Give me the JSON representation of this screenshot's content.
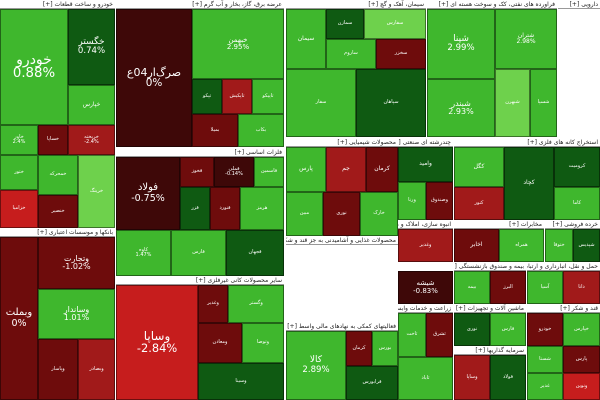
{
  "colors": {
    "strong_green": "#22a61c",
    "green": "#3fb72d",
    "light_green": "#6ed14c",
    "dark_green": "#0f5a12",
    "dark_red": "#6e0c0c",
    "red": "#a11a1a",
    "bright_red": "#c61d1d",
    "maroon": "#3e0808"
  },
  "headers": [
    {
      "id": "auto",
      "text": "خودرو و ساخت قطعات [+]"
    },
    {
      "id": "chem",
      "text": "عرضه برق، گاز، بخار و آب گرم [+]"
    },
    {
      "id": "cement",
      "text": "سیمان، آهک و گچ [+]"
    },
    {
      "id": "petro",
      "text": "فراورده های نفتی، کک و سوخت هسته ای [+]"
    },
    {
      "id": "pharma",
      "text": "دارویی [+]"
    },
    {
      "id": "metals",
      "text": "فلزات اساسی [+]"
    },
    {
      "id": "banks",
      "text": "بانکها و موسسات اعتباری [+]"
    },
    {
      "id": "chemprod",
      "text": "محصولات شیمیایی [+]"
    },
    {
      "id": "investing",
      "text": "چندرشته ای صنعتی [+]"
    },
    {
      "id": "mining",
      "text": "استخراج کانه های فلزی [+]"
    },
    {
      "id": "minerals",
      "text": "محصولات غذایی و آشامیدنی به جز قند و شکر [+]"
    },
    {
      "id": "rubber",
      "text": "انبوه سازی، املاک و مستغلات [+]"
    },
    {
      "id": "telecom",
      "text": "مخابرات [+]"
    },
    {
      "id": "trade",
      "text": "خرده فروشی [+]"
    },
    {
      "id": "nonmetal",
      "text": "سایر محصولات کانی غیرفلزی [+]"
    },
    {
      "id": "insurance",
      "text": "بیمه و صندوق بازنشستگی [+]"
    },
    {
      "id": "transport",
      "text": "حمل و نقل، انبارداری و ارتباطات [+]"
    },
    {
      "id": "machinery",
      "text": "ماشین آلات و تجهیزات [+]"
    },
    {
      "id": "sugar",
      "text": "قند و شکر [+]"
    },
    {
      "id": "tech",
      "text": "رایانه و فعالیتهای وابسته به آن [+]"
    },
    {
      "id": "agri",
      "text": "زراعت و خدمات وابسته [+]"
    },
    {
      "id": "finance",
      "text": "فعالیتهای کمکی به نهادهای مالی واسط [+]"
    },
    {
      "id": "misc",
      "text": "سرمایه گذاریها [+]"
    }
  ],
  "tiles": [
    {
      "id": "khodro",
      "name": "خودرو",
      "change": "0.88%",
      "color": "green",
      "fs": 14
    },
    {
      "id": "khgostar",
      "name": "خگستر",
      "change": "0.74%",
      "color": "dark_green",
      "fs": 9
    },
    {
      "id": "khpars",
      "name": "خپارس",
      "change": "",
      "color": "green",
      "fs": 6
    },
    {
      "id": "kham",
      "name": "خاور",
      "change": "2.4%",
      "color": "green",
      "fs": 5
    },
    {
      "id": "khras",
      "name": "خریخته",
      "change": "-2.4%",
      "color": "red",
      "fs": 5
    },
    {
      "id": "khs1",
      "name": "خساپا",
      "change": "",
      "color": "dark_red",
      "fs": 5
    },
    {
      "id": "kht",
      "name": "ختور",
      "change": "",
      "color": "green",
      "fs": 5
    },
    {
      "id": "khz",
      "name": "خزامیا",
      "change": "",
      "color": "bright_red",
      "fs": 5
    },
    {
      "id": "khb",
      "name": "خمحرکه",
      "change": "",
      "color": "green",
      "fs": 5
    },
    {
      "id": "khn",
      "name": "خنصیر",
      "change": "",
      "color": "dark_red",
      "fs": 5
    },
    {
      "id": "khr",
      "name": "خرینگ",
      "change": "",
      "color": "light_green",
      "fs": 5
    },
    {
      "id": "sarg",
      "name": "صرگ‌ار04ع",
      "change": "0%",
      "color": "maroon",
      "fs": 11
    },
    {
      "id": "khbirn",
      "name": "خبهمن",
      "change": "2.95%",
      "color": "green",
      "fs": 7
    },
    {
      "id": "ch1",
      "name": "تپکو",
      "change": "",
      "color": "dark_green",
      "fs": 5
    },
    {
      "id": "ch2",
      "name": "تاپکیش",
      "change": "",
      "color": "red",
      "fs": 5
    },
    {
      "id": "ch3",
      "name": "تاپیکو",
      "change": "",
      "color": "green",
      "fs": 5
    },
    {
      "id": "ch4",
      "name": "بمیلا",
      "change": "",
      "color": "dark_red",
      "fs": 5
    },
    {
      "id": "ch5",
      "name": "بکاب",
      "change": "",
      "color": "green",
      "fs": 5
    },
    {
      "id": "cem1",
      "name": "سیمان",
      "change": "",
      "color": "green",
      "fs": 6
    },
    {
      "id": "cem2",
      "name": "سمازن",
      "change": "",
      "color": "dark_green",
      "fs": 5
    },
    {
      "id": "cem3",
      "name": "سفارس",
      "change": "",
      "color": "light_green",
      "fs": 5
    },
    {
      "id": "cem4",
      "name": "ساروم",
      "change": "",
      "color": "green",
      "fs": 5
    },
    {
      "id": "cem5",
      "name": "سخزر",
      "change": "",
      "color": "dark_red",
      "fs": 5
    },
    {
      "id": "cem6",
      "name": "سفار",
      "change": "",
      "color": "green",
      "fs": 5
    },
    {
      "id": "cem7",
      "name": "سپاهان",
      "change": "",
      "color": "dark_green",
      "fs": 5
    },
    {
      "id": "shapna",
      "name": "شپنا",
      "change": "2.99%",
      "color": "green",
      "fs": 9
    },
    {
      "id": "shiran",
      "name": "شتران",
      "change": "2.98%",
      "color": "green",
      "fs": 6
    },
    {
      "id": "shbandar",
      "name": "شبندر",
      "change": "2.93%",
      "color": "green",
      "fs": 8
    },
    {
      "id": "shbhn",
      "name": "شبهرن",
      "change": "",
      "color": "light_green",
      "fs": 5
    },
    {
      "id": "shaspa",
      "name": "شسپا",
      "change": "",
      "color": "green",
      "fs": 5
    },
    {
      "id": "fooolad",
      "name": "فولاد",
      "change": "-0.75%",
      "color": "maroon",
      "fs": 10
    },
    {
      "id": "fkhoz",
      "name": "فخوز",
      "change": "",
      "color": "dark_red",
      "fs": 5
    },
    {
      "id": "foolad2",
      "name": "فملی",
      "change": "-0.14%",
      "color": "maroon",
      "fs": 5
    },
    {
      "id": "kave",
      "name": "کاوه",
      "change": "1.47%",
      "color": "green",
      "fs": 5
    },
    {
      "id": "fasmin",
      "name": "فاسمین",
      "change": "",
      "color": "green",
      "fs": 5
    },
    {
      "id": "fzar",
      "name": "فزر",
      "change": "",
      "color": "dark_green",
      "fs": 5
    },
    {
      "id": "fnoor",
      "name": "فنورد",
      "change": "",
      "color": "dark_red",
      "fs": 5
    },
    {
      "id": "hormoz",
      "name": "هرمز",
      "change": "",
      "color": "green",
      "fs": 5
    },
    {
      "id": "farss",
      "name": "فارس",
      "change": "",
      "color": "green",
      "fs": 5
    },
    {
      "id": "fgol",
      "name": "فجهان",
      "change": "",
      "color": "dark_green",
      "fs": 5
    },
    {
      "id": "vtejarat",
      "name": "وتجارت",
      "change": "-1.02%",
      "color": "dark_red",
      "fs": 8
    },
    {
      "id": "vsandar",
      "name": "وساندار",
      "change": "1.01%",
      "color": "green",
      "fs": 8
    },
    {
      "id": "vbmel",
      "name": "وبملت",
      "change": "0%",
      "color": "dark_red",
      "fs": 10
    },
    {
      "id": "vpasar",
      "name": "وپاسار",
      "change": "",
      "color": "dark_red",
      "fs": 5
    },
    {
      "id": "vb5",
      "name": "وبصادر",
      "change": "",
      "color": "red",
      "fs": 5
    },
    {
      "id": "vsapa",
      "name": "وساپا",
      "change": "-2.84%",
      "color": "bright_red",
      "fs": 12
    },
    {
      "id": "vghadir",
      "name": "وغدیر",
      "change": "",
      "color": "dark_red",
      "fs": 5
    },
    {
      "id": "vgostar",
      "name": "وگستر",
      "change": "",
      "color": "green",
      "fs": 5
    },
    {
      "id": "vmaaden",
      "name": "ومعادن",
      "change": "",
      "color": "dark_red",
      "fs": 5
    },
    {
      "id": "vtoosa",
      "name": "وتوصا",
      "change": "",
      "color": "green",
      "fs": 5
    },
    {
      "id": "vsina",
      "name": "وسینا",
      "change": "",
      "color": "dark_green",
      "fs": 5
    },
    {
      "id": "pars",
      "name": "پارس",
      "change": "",
      "color": "green",
      "fs": 6
    },
    {
      "id": "jam",
      "name": "جم",
      "change": "",
      "color": "red",
      "fs": 6
    },
    {
      "id": "kaveh",
      "name": "کرمان",
      "change": "",
      "color": "dark_red",
      "fs": 6
    },
    {
      "id": "mobin",
      "name": "مبین",
      "change": "",
      "color": "green",
      "fs": 5
    },
    {
      "id": "navid",
      "name": "نوری",
      "change": "",
      "color": "dark_red",
      "fs": 5
    },
    {
      "id": "kharg",
      "name": "خارک",
      "change": "",
      "color": "green",
      "fs": 5
    },
    {
      "id": "vamid",
      "name": "وامید",
      "change": "",
      "color": "dark_green",
      "fs": 6
    },
    {
      "id": "vrana",
      "name": "ورنا",
      "change": "",
      "color": "green",
      "fs": 5
    },
    {
      "id": "vsiab",
      "name": "وصندوق",
      "change": "",
      "color": "dark_red",
      "fs": 5
    },
    {
      "id": "vgha",
      "name": "وغدیر",
      "change": "",
      "color": "red",
      "fs": 5
    },
    {
      "id": "kgol",
      "name": "کگل",
      "change": "",
      "color": "green",
      "fs": 6
    },
    {
      "id": "kchad",
      "name": "کچاد",
      "change": "",
      "color": "dark_green",
      "fs": 6
    },
    {
      "id": "kmesh",
      "name": "کرومیت",
      "change": "",
      "color": "dark_green",
      "fs": 5
    },
    {
      "id": "krom",
      "name": "کنور",
      "change": "",
      "color": "red",
      "fs": 5
    },
    {
      "id": "knoor",
      "name": "کاما",
      "change": "",
      "color": "green",
      "fs": 5
    },
    {
      "id": "shisha",
      "name": "شیشه",
      "change": "-0.83%",
      "color": "maroon",
      "fs": 7
    },
    {
      "id": "rubber1",
      "name": "ثاخت",
      "change": "",
      "color": "green",
      "fs": 5
    },
    {
      "id": "rubber2",
      "name": "ثشرق",
      "change": "",
      "color": "dark_red",
      "fs": 5
    },
    {
      "id": "rubber3",
      "name": "ثاباد",
      "change": "",
      "color": "green",
      "fs": 5
    },
    {
      "id": "akhabar",
      "name": "اخابر",
      "change": "",
      "color": "dark_red",
      "fs": 6
    },
    {
      "id": "hamrah",
      "name": "همراه",
      "change": "",
      "color": "green",
      "fs": 5
    },
    {
      "id": "kala",
      "name": "کالا",
      "change": "2.89%",
      "color": "green",
      "fs": 9
    },
    {
      "id": "kala2",
      "name": "کرمان",
      "change": "",
      "color": "dark_red",
      "fs": 5
    },
    {
      "id": "kala3",
      "name": "بورس",
      "change": "",
      "color": "green",
      "fs": 5
    },
    {
      "id": "kala4",
      "name": "فرابورس",
      "change": "",
      "color": "dark_green",
      "fs": 5
    },
    {
      "id": "inst1",
      "name": "بیمه",
      "change": "",
      "color": "green",
      "fs": 5
    },
    {
      "id": "inst2",
      "name": "البرز",
      "change": "",
      "color": "dark_red",
      "fs": 5
    },
    {
      "id": "inst3",
      "name": "آسیا",
      "change": "",
      "color": "green",
      "fs": 5
    },
    {
      "id": "inst4",
      "name": "دانا",
      "change": "",
      "color": "red",
      "fs": 5
    },
    {
      "id": "m1",
      "name": "نوری",
      "change": "",
      "color": "dark_green",
      "fs": 5
    },
    {
      "id": "m2",
      "name": "فارس",
      "change": "",
      "color": "green",
      "fs": 5
    },
    {
      "id": "m3",
      "name": "خودرو",
      "change": "",
      "color": "dark_red",
      "fs": 5
    },
    {
      "id": "m4",
      "name": "خپارس",
      "change": "",
      "color": "green",
      "fs": 5
    },
    {
      "id": "m5",
      "name": "وساپا",
      "change": "",
      "color": "red",
      "fs": 5
    },
    {
      "id": "m6",
      "name": "فولاد",
      "change": "",
      "color": "dark_green",
      "fs": 5
    },
    {
      "id": "m7",
      "name": "شستا",
      "change": "",
      "color": "green",
      "fs": 5
    },
    {
      "id": "m8",
      "name": "پارس",
      "change": "",
      "color": "dark_red",
      "fs": 5
    },
    {
      "id": "m9",
      "name": "غدیر",
      "change": "",
      "color": "green",
      "fs": 5
    },
    {
      "id": "m10",
      "name": "ونوین",
      "change": "",
      "color": "bright_red",
      "fs": 5
    },
    {
      "id": "m11",
      "name": "ختوقا",
      "change": "",
      "color": "green",
      "fs": 5
    },
    {
      "id": "m12",
      "name": "شپدیس",
      "change": "",
      "color": "dark_green",
      "fs": 5
    }
  ]
}
